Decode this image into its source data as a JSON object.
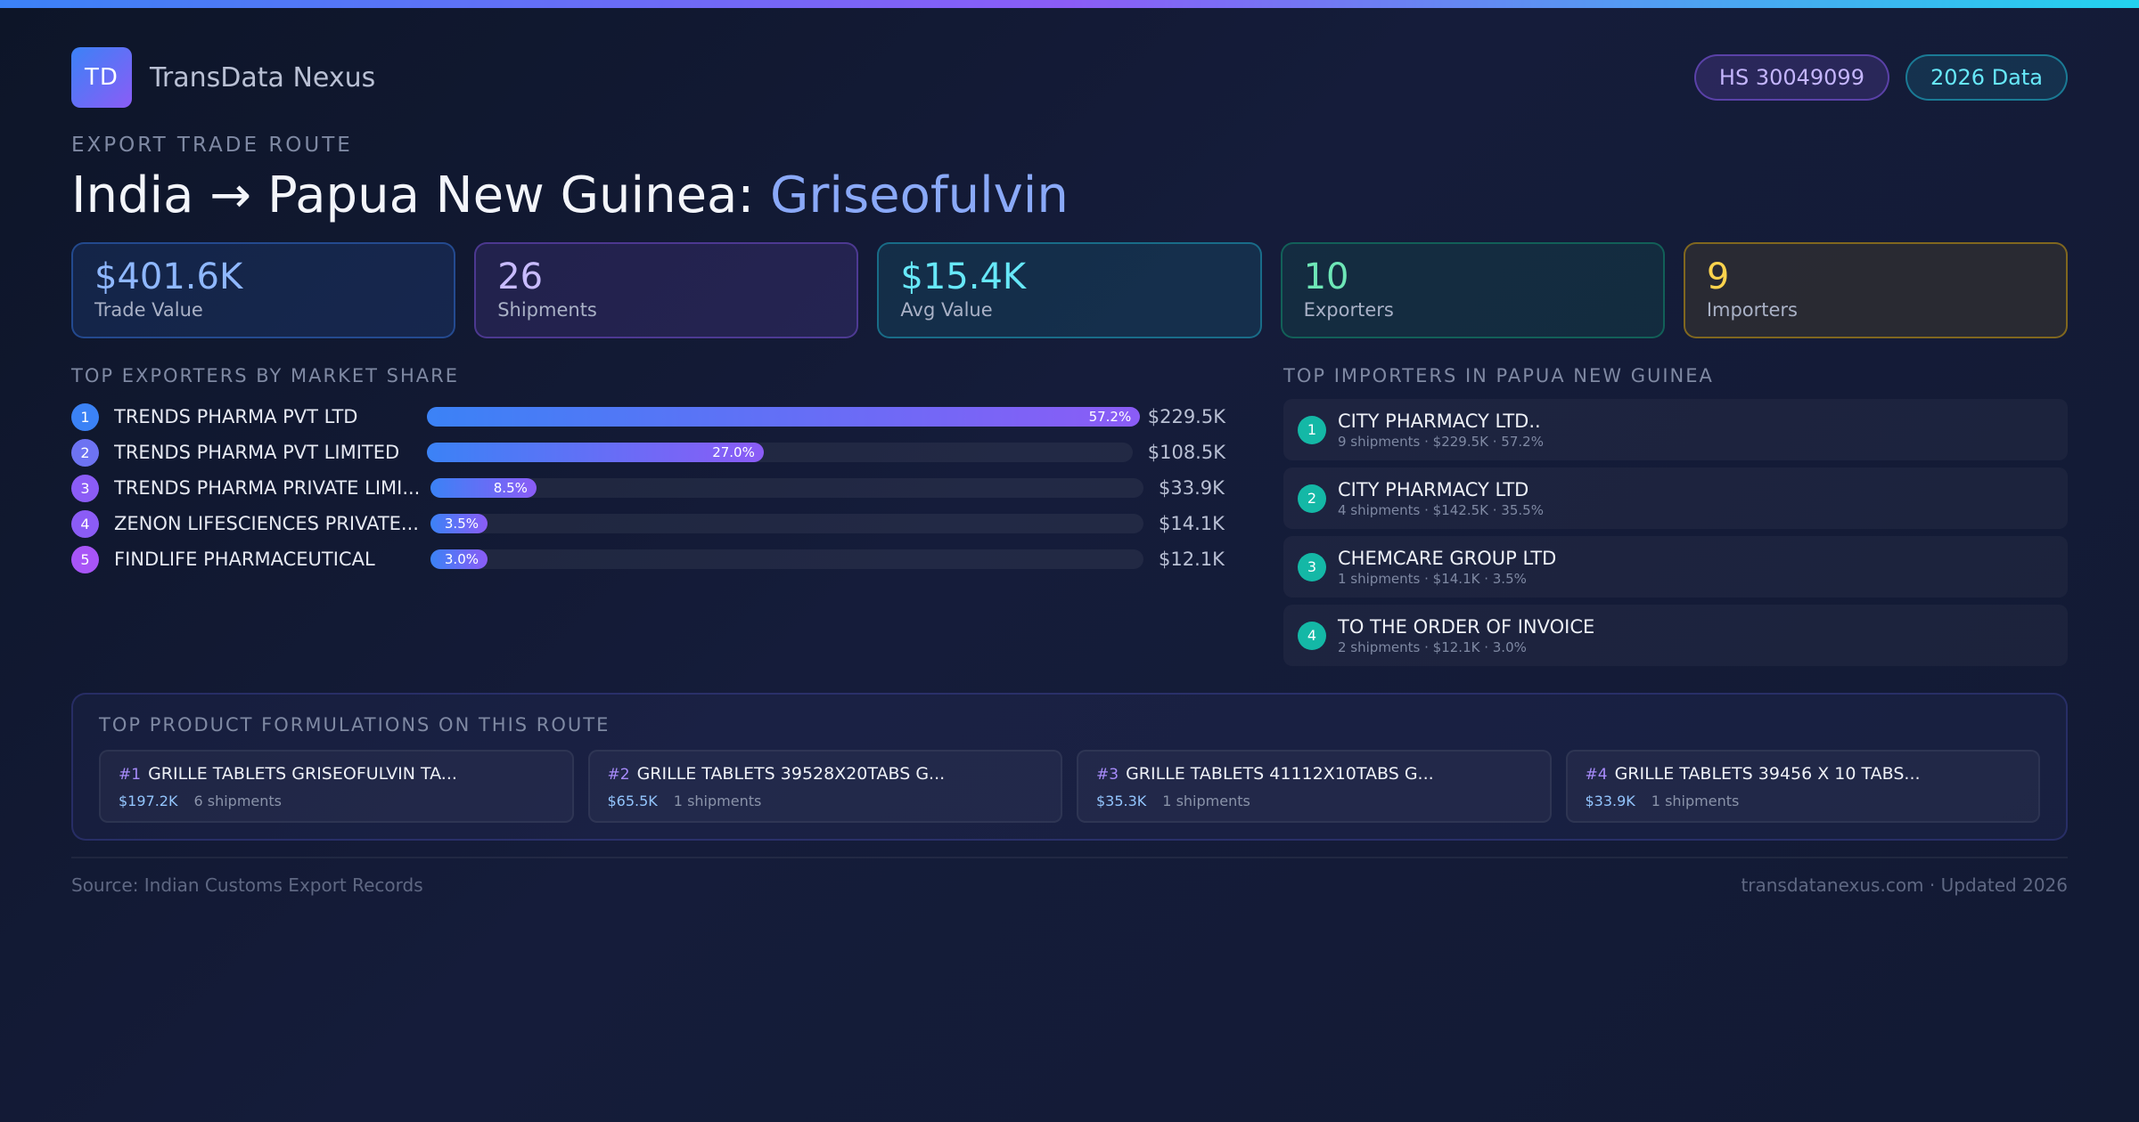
{
  "brand": {
    "logo_text": "TD",
    "name": "TransData Nexus"
  },
  "badges": {
    "hs_code": "HS 30049099",
    "data_year": "2026 Data"
  },
  "route": {
    "label": "EXPORT TRADE ROUTE",
    "title_prefix": "India → Papua New Guinea: ",
    "product": "Griseofulvin"
  },
  "stats": [
    {
      "value": "$401.6K",
      "label": "Trade Value"
    },
    {
      "value": "26",
      "label": "Shipments"
    },
    {
      "value": "$15.4K",
      "label": "Avg Value"
    },
    {
      "value": "10",
      "label": "Exporters"
    },
    {
      "value": "9",
      "label": "Importers"
    }
  ],
  "exporters": {
    "title": "TOP EXPORTERS BY MARKET SHARE",
    "items": [
      {
        "rank": "1",
        "name": "TRENDS PHARMA PVT LTD",
        "share": 57.2,
        "share_label": "57.2%",
        "value": "$229.5K",
        "color": "#3b82f6"
      },
      {
        "rank": "2",
        "name": "TRENDS PHARMA PVT LIMITED",
        "share": 27.0,
        "share_label": "27.0%",
        "value": "$108.5K",
        "color": "#6d73f2"
      },
      {
        "rank": "3",
        "name": "TRENDS PHARMA PRIVATE LIMI...",
        "share": 8.5,
        "share_label": "8.5%",
        "value": "$33.9K",
        "color": "#8b5cf6"
      },
      {
        "rank": "4",
        "name": "ZENON LIFESCIENCES PRIVATE...",
        "share": 3.5,
        "share_label": "3.5%",
        "value": "$14.1K",
        "color": "#8b5cf6"
      },
      {
        "rank": "5",
        "name": "FINDLIFE PHARMACEUTICAL",
        "share": 3.0,
        "share_label": "3.0%",
        "value": "$12.1K",
        "color": "#a855f7"
      }
    ]
  },
  "importers": {
    "title": "TOP IMPORTERS IN PAPUA NEW GUINEA",
    "items": [
      {
        "rank": "1",
        "name": "CITY PHARMACY LTD..",
        "meta": "9 shipments · $229.5K · 57.2%"
      },
      {
        "rank": "2",
        "name": "CITY PHARMACY LTD",
        "meta": "4 shipments · $142.5K · 35.5%"
      },
      {
        "rank": "3",
        "name": "CHEMCARE GROUP LTD",
        "meta": "1 shipments · $14.1K · 3.5%"
      },
      {
        "rank": "4",
        "name": "TO THE ORDER OF INVOICE",
        "meta": "2 shipments · $12.1K · 3.0%"
      }
    ]
  },
  "formulations": {
    "title": "TOP PRODUCT FORMULATIONS ON THIS ROUTE",
    "items": [
      {
        "num": "#1",
        "name": "GRILLE TABLETS GRISEOFULVIN TA...",
        "value": "$197.2K",
        "shipments": "6 shipments"
      },
      {
        "num": "#2",
        "name": "GRILLE TABLETS 39528X20TABS G...",
        "value": "$65.5K",
        "shipments": "1 shipments"
      },
      {
        "num": "#3",
        "name": "GRILLE TABLETS 41112X10TABS G...",
        "value": "$35.3K",
        "shipments": "1 shipments"
      },
      {
        "num": "#4",
        "name": "GRILLE TABLETS 39456 X 10 TABS...",
        "value": "$33.9K",
        "shipments": "1 shipments"
      }
    ]
  },
  "footer": {
    "source": "Source: Indian Customs Export Records",
    "site": "transdatanexus.com · Updated 2026"
  }
}
